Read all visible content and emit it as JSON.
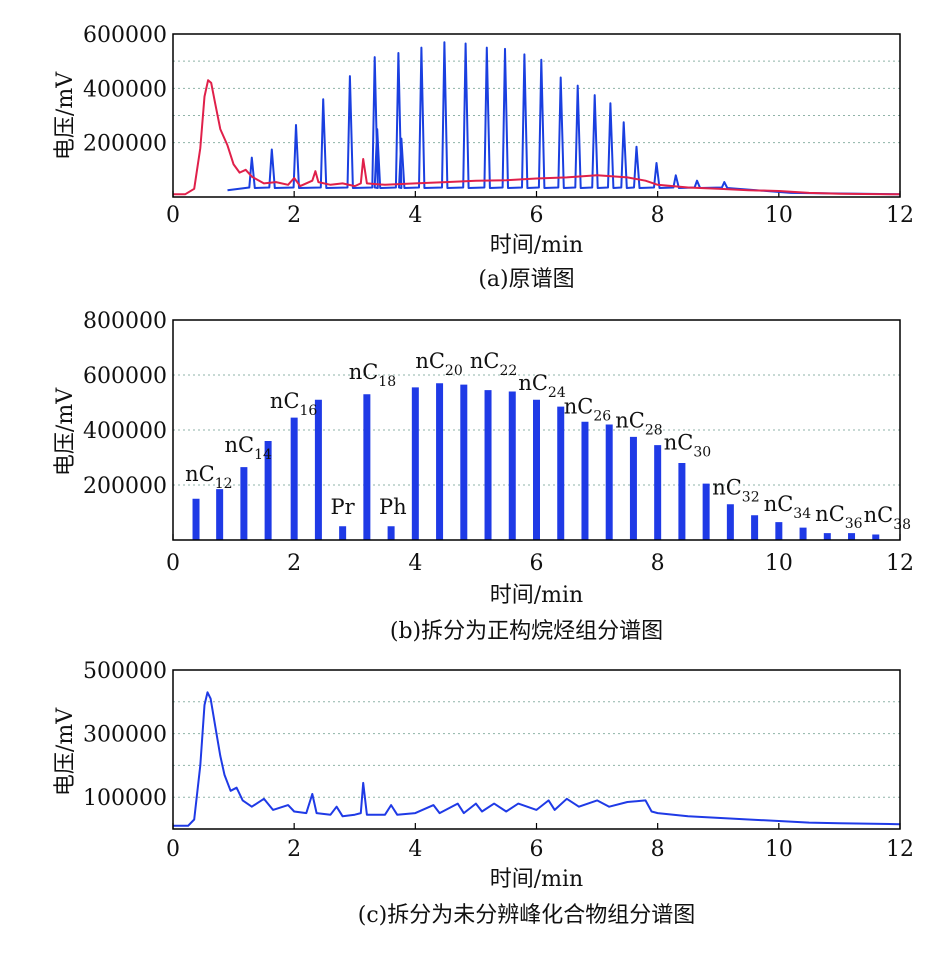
{
  "chart_data": [
    {
      "type": "line",
      "caption": "(a)原谱图",
      "xlabel": "时间/min",
      "ylabel": "电压/mV",
      "xlim": [
        0,
        12
      ],
      "ylim": [
        0,
        600000
      ],
      "xticks": [
        "0",
        "2",
        "4",
        "6",
        "8",
        "10",
        "12"
      ],
      "yticks": [
        "200000",
        "400000",
        "600000"
      ],
      "grid": true,
      "colors": {
        "original": "#1a3fe0",
        "baseline": "#e0204a"
      },
      "series": [
        {
          "color": "#1a3fe0",
          "peaks": [
            [
              1.3,
              145000
            ],
            [
              1.63,
              175000
            ],
            [
              2.03,
              265000
            ],
            [
              2.48,
              360000
            ],
            [
              2.92,
              445000
            ],
            [
              3.33,
              515000
            ],
            [
              3.37,
              250000
            ],
            [
              3.72,
              530000
            ],
            [
              3.77,
              215000
            ],
            [
              4.1,
              550000
            ],
            [
              4.48,
              570000
            ],
            [
              4.83,
              565000
            ],
            [
              5.18,
              550000
            ],
            [
              5.48,
              545000
            ],
            [
              5.8,
              525000
            ],
            [
              6.08,
              505000
            ],
            [
              6.4,
              440000
            ],
            [
              6.68,
              410000
            ],
            [
              6.96,
              375000
            ],
            [
              7.22,
              345000
            ],
            [
              7.44,
              275000
            ],
            [
              7.65,
              185000
            ],
            [
              7.98,
              125000
            ],
            [
              8.3,
              80000
            ],
            [
              8.65,
              60000
            ],
            [
              9.1,
              55000
            ]
          ]
        },
        {
          "color": "#e0204a",
          "points": [
            [
              0,
              10000
            ],
            [
              0.2,
              10000
            ],
            [
              0.35,
              30000
            ],
            [
              0.45,
              180000
            ],
            [
              0.52,
              370000
            ],
            [
              0.58,
              430000
            ],
            [
              0.63,
              420000
            ],
            [
              0.7,
              340000
            ],
            [
              0.78,
              250000
            ],
            [
              0.9,
              190000
            ],
            [
              1.0,
              120000
            ],
            [
              1.1,
              90000
            ],
            [
              1.2,
              100000
            ],
            [
              1.3,
              75000
            ],
            [
              1.5,
              50000
            ],
            [
              1.7,
              55000
            ],
            [
              1.9,
              45000
            ],
            [
              2.0,
              70000
            ],
            [
              2.1,
              40000
            ],
            [
              2.3,
              60000
            ],
            [
              2.35,
              95000
            ],
            [
              2.4,
              55000
            ],
            [
              2.6,
              45000
            ],
            [
              2.8,
              50000
            ],
            [
              3.0,
              40000
            ],
            [
              3.1,
              50000
            ],
            [
              3.14,
              140000
            ],
            [
              3.2,
              50000
            ],
            [
              3.5,
              45000
            ],
            [
              4.0,
              50000
            ],
            [
              4.5,
              55000
            ],
            [
              5.0,
              60000
            ],
            [
              5.5,
              62000
            ],
            [
              6.0,
              68000
            ],
            [
              6.5,
              72000
            ],
            [
              7.0,
              80000
            ],
            [
              7.5,
              72000
            ],
            [
              7.8,
              60000
            ],
            [
              8.0,
              45000
            ],
            [
              8.5,
              35000
            ],
            [
              9.0,
              30000
            ],
            [
              9.5,
              25000
            ],
            [
              10.0,
              22000
            ],
            [
              10.5,
              15000
            ],
            [
              11.0,
              12000
            ],
            [
              12.0,
              10000
            ]
          ]
        }
      ]
    },
    {
      "type": "bar",
      "caption": "(b)拆分为正构烷烃组分谱图",
      "xlabel": "时间/min",
      "ylabel": "电压/mV",
      "xlim": [
        0,
        12
      ],
      "ylim": [
        0,
        800000
      ],
      "xticks": [
        "0",
        "2",
        "4",
        "6",
        "8",
        "10",
        "12"
      ],
      "yticks": [
        "200000",
        "400000",
        "600000",
        "800000"
      ],
      "grid": true,
      "color": "#1f3ae6",
      "bars": [
        [
          0.38,
          150000
        ],
        [
          0.77,
          185000
        ],
        [
          1.17,
          265000
        ],
        [
          1.57,
          360000
        ],
        [
          2.0,
          445000
        ],
        [
          2.4,
          510000
        ],
        [
          2.8,
          50000
        ],
        [
          3.2,
          530000
        ],
        [
          3.6,
          50000
        ],
        [
          4.0,
          555000
        ],
        [
          4.4,
          570000
        ],
        [
          4.8,
          565000
        ],
        [
          5.2,
          545000
        ],
        [
          5.6,
          540000
        ],
        [
          6.0,
          510000
        ],
        [
          6.4,
          485000
        ],
        [
          6.8,
          430000
        ],
        [
          7.2,
          420000
        ],
        [
          7.6,
          375000
        ],
        [
          8.0,
          345000
        ],
        [
          8.4,
          280000
        ],
        [
          8.8,
          205000
        ],
        [
          9.2,
          130000
        ],
        [
          9.6,
          90000
        ],
        [
          10.0,
          65000
        ],
        [
          10.4,
          45000
        ],
        [
          10.8,
          25000
        ],
        [
          11.2,
          25000
        ],
        [
          11.6,
          20000
        ]
      ],
      "labels": [
        {
          "main": "nC",
          "sub": "12",
          "x": 0.2,
          "y": 215000
        },
        {
          "main": "nC",
          "sub": "14",
          "x": 0.85,
          "y": 320000
        },
        {
          "main": "nC",
          "sub": "16",
          "x": 1.6,
          "y": 480000
        },
        {
          "main": "Pr",
          "sub": "",
          "x": 2.6,
          "y": 95000
        },
        {
          "main": "nC",
          "sub": "18",
          "x": 2.9,
          "y": 585000
        },
        {
          "main": "Ph",
          "sub": "",
          "x": 3.4,
          "y": 95000
        },
        {
          "main": "nC",
          "sub": "20",
          "x": 4.0,
          "y": 625000
        },
        {
          "main": "nC",
          "sub": "22",
          "x": 4.9,
          "y": 625000
        },
        {
          "main": "nC",
          "sub": "24",
          "x": 5.7,
          "y": 545000
        },
        {
          "main": "nC",
          "sub": "26",
          "x": 6.45,
          "y": 460000
        },
        {
          "main": "nC",
          "sub": "28",
          "x": 7.3,
          "y": 410000
        },
        {
          "main": "nC",
          "sub": "30",
          "x": 8.1,
          "y": 330000
        },
        {
          "main": "nC",
          "sub": "32",
          "x": 8.9,
          "y": 165000
        },
        {
          "main": "nC",
          "sub": "34",
          "x": 9.75,
          "y": 105000
        },
        {
          "main": "nC",
          "sub": "36",
          "x": 10.6,
          "y": 70000
        },
        {
          "main": "nC",
          "sub": "38",
          "x": 11.4,
          "y": 65000
        }
      ]
    },
    {
      "type": "line",
      "caption": "(c)拆分为未分辨峰化合物组分谱图",
      "xlabel": "时间/min",
      "ylabel": "电压/mV",
      "xlim": [
        0,
        12
      ],
      "ylim": [
        0,
        500000
      ],
      "xticks": [
        "0",
        "2",
        "4",
        "6",
        "8",
        "10",
        "12"
      ],
      "yticks": [
        "100000",
        "300000",
        "500000"
      ],
      "grid": true,
      "series": [
        {
          "color": "#1f3ae6",
          "points": [
            [
              0,
              10000
            ],
            [
              0.25,
              10000
            ],
            [
              0.35,
              30000
            ],
            [
              0.45,
              200000
            ],
            [
              0.52,
              390000
            ],
            [
              0.57,
              430000
            ],
            [
              0.62,
              410000
            ],
            [
              0.7,
              320000
            ],
            [
              0.78,
              230000
            ],
            [
              0.85,
              170000
            ],
            [
              0.95,
              120000
            ],
            [
              1.05,
              130000
            ],
            [
              1.15,
              90000
            ],
            [
              1.3,
              70000
            ],
            [
              1.5,
              95000
            ],
            [
              1.65,
              60000
            ],
            [
              1.9,
              75000
            ],
            [
              2.0,
              55000
            ],
            [
              2.2,
              50000
            ],
            [
              2.3,
              110000
            ],
            [
              2.37,
              50000
            ],
            [
              2.6,
              45000
            ],
            [
              2.7,
              70000
            ],
            [
              2.8,
              40000
            ],
            [
              3.0,
              45000
            ],
            [
              3.1,
              50000
            ],
            [
              3.14,
              145000
            ],
            [
              3.2,
              45000
            ],
            [
              3.5,
              45000
            ],
            [
              3.6,
              75000
            ],
            [
              3.7,
              45000
            ],
            [
              4.0,
              50000
            ],
            [
              4.3,
              75000
            ],
            [
              4.4,
              50000
            ],
            [
              4.7,
              80000
            ],
            [
              4.8,
              50000
            ],
            [
              5.0,
              80000
            ],
            [
              5.1,
              55000
            ],
            [
              5.3,
              80000
            ],
            [
              5.5,
              55000
            ],
            [
              5.7,
              80000
            ],
            [
              6.0,
              60000
            ],
            [
              6.2,
              90000
            ],
            [
              6.3,
              60000
            ],
            [
              6.5,
              95000
            ],
            [
              6.7,
              70000
            ],
            [
              7.0,
              90000
            ],
            [
              7.2,
              70000
            ],
            [
              7.5,
              85000
            ],
            [
              7.8,
              90000
            ],
            [
              7.9,
              55000
            ],
            [
              8.0,
              50000
            ],
            [
              8.5,
              40000
            ],
            [
              9.0,
              35000
            ],
            [
              9.5,
              30000
            ],
            [
              10.0,
              25000
            ],
            [
              10.5,
              20000
            ],
            [
              11.0,
              18000
            ],
            [
              12.0,
              15000
            ]
          ]
        }
      ]
    }
  ]
}
